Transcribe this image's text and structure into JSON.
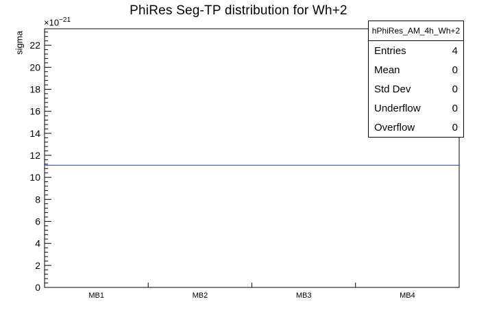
{
  "title": "PhiRes Seg-TP distribution for Wh+2",
  "axes": {
    "y_label": "sigma",
    "y_power_prefix": "×10",
    "y_power_exponent": "−21"
  },
  "stats_box": {
    "title": "hPhiRes_AM_4h_Wh+2",
    "rows": [
      {
        "label": "Entries",
        "value": "4"
      },
      {
        "label": "Mean",
        "value": "0"
      },
      {
        "label": "Std Dev",
        "value": "0"
      },
      {
        "label": "Underflow",
        "value": "0"
      },
      {
        "label": "Overflow",
        "value": "0"
      }
    ]
  },
  "chart_data": {
    "type": "line",
    "title": "PhiRes Seg-TP distribution for Wh+2",
    "xlabel": "",
    "ylabel": "sigma",
    "y_unit_scale": "1e-21",
    "categories": [
      "MB1",
      "MB2",
      "MB3",
      "MB4"
    ],
    "series": [
      {
        "name": "hPhiRes_AM_4h_Wh+2",
        "values": [
          11.1,
          11.1,
          11.1,
          11.1
        ],
        "color": "#3f51b5"
      }
    ],
    "ylim": [
      0,
      23.5
    ],
    "ytick_step": 2,
    "yticks": [
      0,
      2,
      4,
      6,
      8,
      10,
      12,
      14,
      16,
      18,
      20,
      22
    ],
    "grid": false,
    "legend_position": "none",
    "stats": {
      "entries": 4,
      "mean": 0,
      "std_dev": 0,
      "underflow": 0,
      "overflow": 0
    }
  }
}
